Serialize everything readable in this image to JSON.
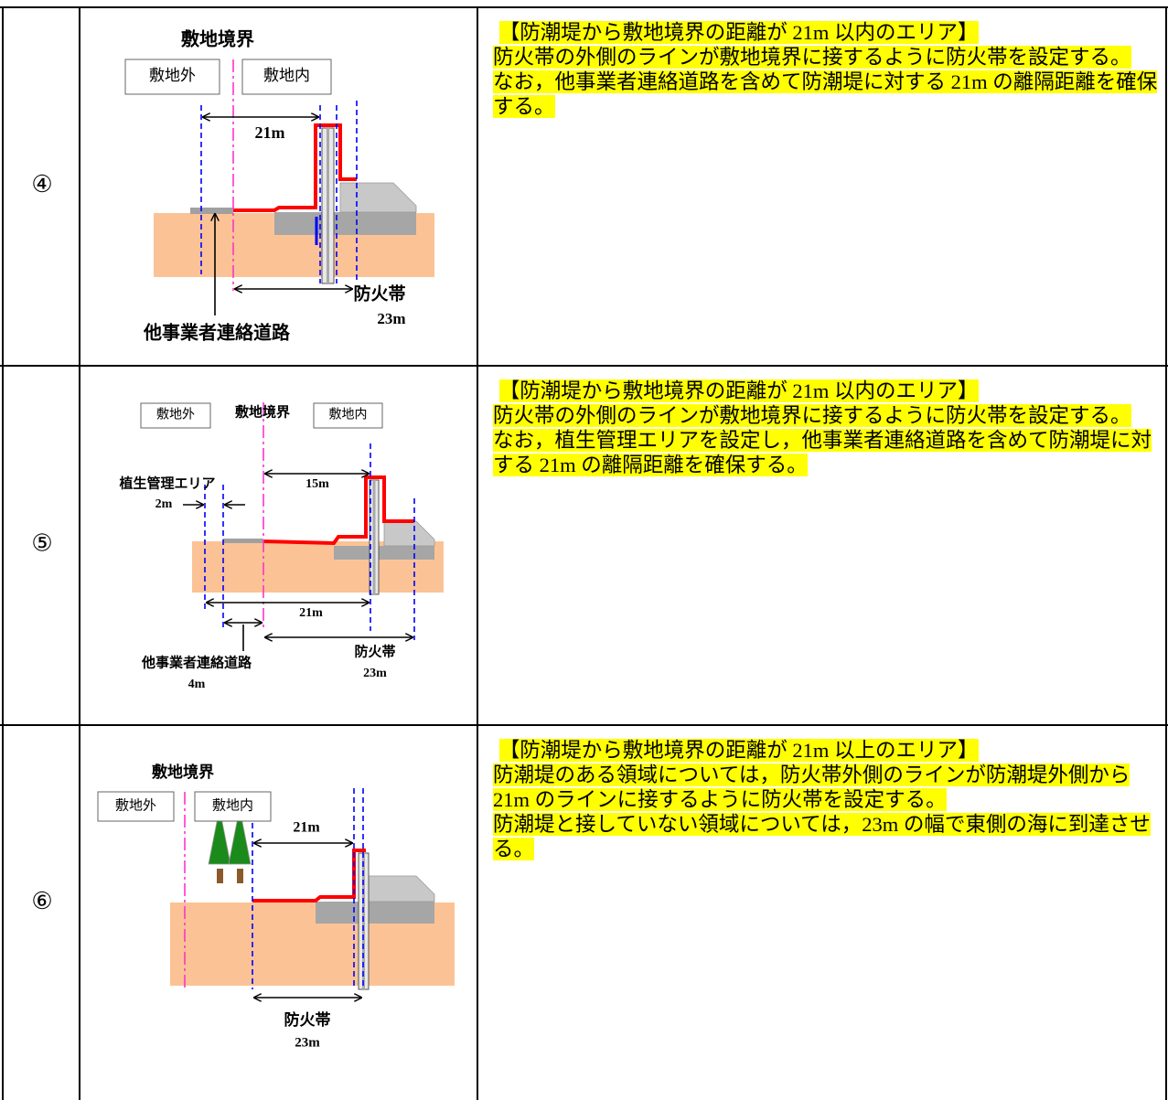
{
  "rows": [
    {
      "number": "④",
      "diagram": {
        "boundary": "敷地境界",
        "outside": "敷地外",
        "inside": "敷地内",
        "distance": "21m",
        "firebreak": "防火帯",
        "firebreak_width": "23m",
        "road": "他事業者連絡道路"
      },
      "description": [
        "【防潮堤から敷地境界の距離が 21m 以内のエリア】",
        "防火帯の外側のラインが敷地境界に接するように防火帯を設定する。",
        "なお，他事業者連絡道路を含めて防潮堤に対する 21m の離隔距離を確保する。"
      ]
    },
    {
      "number": "⑤",
      "diagram": {
        "outside": "敷地外",
        "boundary": "敷地境界",
        "inside": "敷地内",
        "distance": "15m",
        "vegetation": "植生管理エリア",
        "vegetation_width": "2m",
        "total": "21m",
        "firebreak": "防火帯",
        "firebreak_width": "23m",
        "road": "他事業者連絡道路",
        "road_width": "4m"
      },
      "description": [
        "【防潮堤から敷地境界の距離が 21m 以内のエリア】",
        "防火帯の外側のラインが敷地境界に接するように防火帯を設定する。",
        "なお，植生管理エリアを設定し，他事業者連絡道路を含めて防潮堤に対する 21m の離隔距離を確保する。"
      ]
    },
    {
      "number": "⑥",
      "diagram": {
        "boundary": "敷地境界",
        "outside": "敷地外",
        "inside": "敷地内",
        "distance": "21m",
        "firebreak": "防火帯",
        "firebreak_width": "23m"
      },
      "description": [
        "【防潮堤から敷地境界の距離が 21m 以上のエリア】",
        "防潮堤のある領域については，防火帯外側のラインが防潮堤外側から 21m のラインに接するように防火帯を設定する。",
        "防潮堤と接していない領域については，23m の幅で東側の海に到達させる。"
      ]
    }
  ]
}
